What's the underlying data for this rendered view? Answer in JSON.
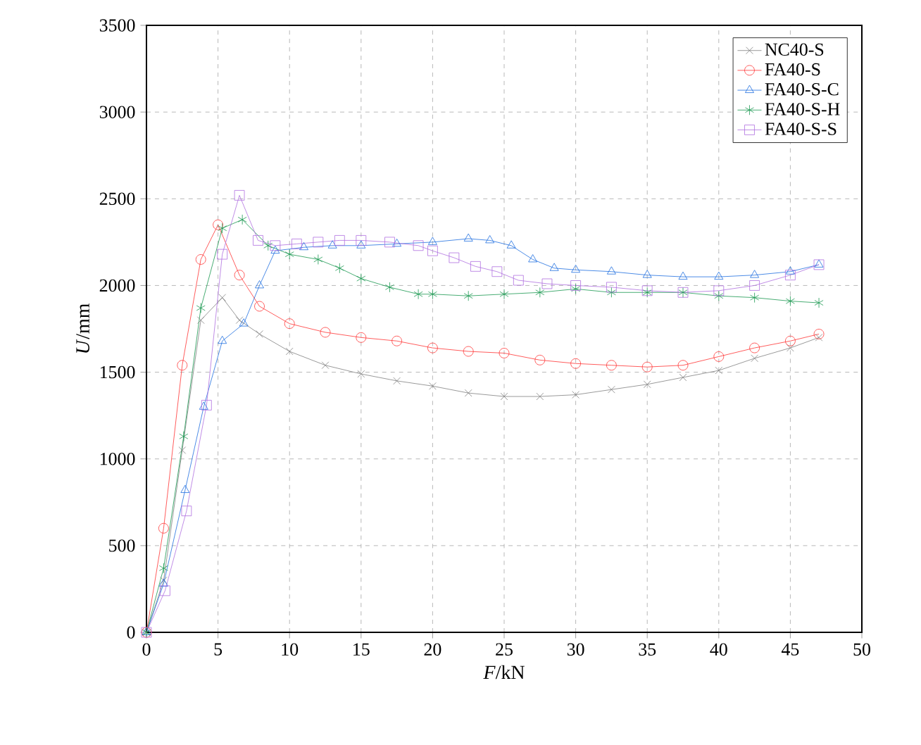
{
  "chart_data": {
    "type": "line",
    "xlabel": "*F*/kN",
    "ylabel": "*U*/mm",
    "xlim": [
      0,
      50
    ],
    "ylim": [
      0,
      3500
    ],
    "xticks": [
      0,
      5,
      10,
      15,
      20,
      25,
      30,
      35,
      40,
      45,
      50
    ],
    "yticks": [
      0,
      500,
      1000,
      1500,
      2000,
      2500,
      3000,
      3500
    ],
    "grid": true,
    "legend": "top right",
    "line_style": "solid",
    "series": [
      {
        "name": "NC40-S",
        "color": "#808080",
        "marker": "cross",
        "x": [
          0,
          1.2,
          2.5,
          3.8,
          5.3,
          6.5,
          7.9,
          10,
          12.5,
          15,
          17.5,
          20,
          22.5,
          25,
          27.5,
          30,
          32.5,
          35,
          37.5,
          40,
          42.5,
          45,
          47
        ],
        "values": [
          0,
          300,
          1050,
          1800,
          1930,
          1800,
          1720,
          1620,
          1540,
          1490,
          1450,
          1420,
          1380,
          1360,
          1360,
          1370,
          1400,
          1430,
          1470,
          1510,
          1580,
          1640,
          1700
        ]
      },
      {
        "name": "FA40-S",
        "color": "#ff3333",
        "marker": "circle",
        "x": [
          0,
          1.2,
          2.5,
          3.8,
          5,
          6.5,
          7.9,
          10,
          12.5,
          15,
          17.5,
          20,
          22.5,
          25,
          27.5,
          30,
          32.5,
          35,
          37.5,
          40,
          42.5,
          45,
          47
        ],
        "values": [
          0,
          600,
          1540,
          2150,
          2350,
          2060,
          1880,
          1780,
          1730,
          1700,
          1680,
          1640,
          1620,
          1610,
          1570,
          1550,
          1540,
          1530,
          1540,
          1590,
          1640,
          1680,
          1720
        ]
      },
      {
        "name": "FA40-S-C",
        "color": "#1f6fe0",
        "marker": "triangle",
        "x": [
          0,
          1.2,
          2.7,
          4,
          5.3,
          6.8,
          7.9,
          9,
          11,
          13,
          15,
          17.5,
          20,
          22.5,
          24,
          25.5,
          27,
          28.5,
          30,
          32.5,
          35,
          37.5,
          40,
          42.5,
          45,
          47
        ],
        "values": [
          0,
          280,
          820,
          1300,
          1680,
          1780,
          2000,
          2200,
          2220,
          2230,
          2230,
          2240,
          2250,
          2270,
          2260,
          2230,
          2150,
          2100,
          2090,
          2080,
          2060,
          2050,
          2050,
          2060,
          2080,
          2120
        ]
      },
      {
        "name": "FA40-S-H",
        "color": "#1a9850",
        "marker": "cross",
        "x": [
          0,
          1.2,
          2.6,
          3.8,
          5.3,
          6.7,
          8.5,
          10,
          12,
          13.5,
          15,
          17,
          19,
          20,
          22.5,
          25,
          27.5,
          30,
          32.5,
          35,
          37.5,
          40,
          42.5,
          45,
          47
        ],
        "values": [
          0,
          370,
          1130,
          1870,
          2330,
          2380,
          2230,
          2180,
          2150,
          2100,
          2040,
          1990,
          1950,
          1950,
          1940,
          1950,
          1960,
          1980,
          1960,
          1960,
          1960,
          1940,
          1930,
          1910,
          1900
        ]
      },
      {
        "name": "FA40-S-S",
        "color": "#b070e0",
        "marker": "square",
        "x": [
          0,
          1.3,
          2.8,
          4.2,
          5.3,
          6.5,
          7.8,
          9,
          10.5,
          12,
          13.5,
          15,
          17,
          19,
          20,
          21.5,
          23,
          24.5,
          26,
          28,
          30,
          32.5,
          35,
          37.5,
          40,
          42.5,
          45,
          47
        ],
        "values": [
          0,
          240,
          700,
          1310,
          2180,
          2520,
          2260,
          2230,
          2240,
          2250,
          2260,
          2260,
          2250,
          2230,
          2200,
          2160,
          2110,
          2080,
          2030,
          2010,
          2000,
          1990,
          1970,
          1960,
          1970,
          2000,
          2060,
          2120
        ]
      }
    ]
  }
}
